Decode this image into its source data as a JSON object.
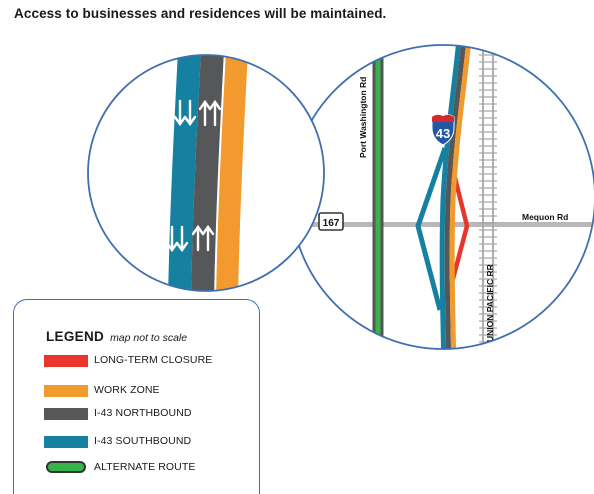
{
  "headline": "Access to businesses and residences will be maintained.",
  "map": {
    "roads": {
      "port_washington": "Port Washington Rd",
      "mequon": "Mequon Rd",
      "railroad": "UNION PACIFIC RR"
    },
    "shields": {
      "state_route": "167",
      "interstate": "43"
    }
  },
  "legend": {
    "title": "LEGEND",
    "note": "map not to scale",
    "items": [
      {
        "label": "LONG-TERM CLOSURE",
        "color": "#e8362c"
      },
      {
        "label": "WORK ZONE",
        "color": "#f29a2e"
      },
      {
        "label": "I-43 NORTHBOUND",
        "color": "#555759"
      },
      {
        "label": "I-43 SOUTHBOUND",
        "color": "#1580a0"
      },
      {
        "label": "ALTERNATE ROUTE",
        "color": "#36b34a"
      }
    ]
  }
}
